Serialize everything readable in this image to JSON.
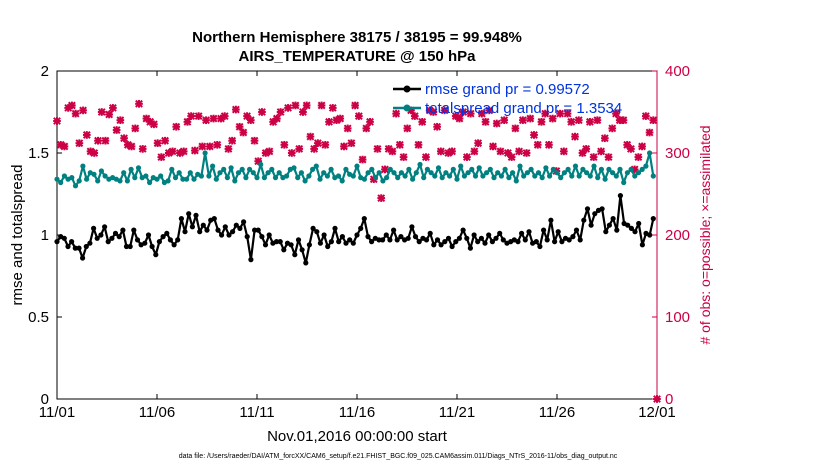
{
  "chart_data": {
    "type": "line",
    "title": "Northern Hemisphere 38175 / 38195 = 99.948%",
    "subtitle": "AIRS_TEMPERATURE @ 150 hPa",
    "xlabel": "Nov.01,2016 00:00:00 start",
    "ylabel_left": "rmse and totalspread",
    "ylabel_right": "# of obs: o=possible; ×=assimilated",
    "footnote": "data file: /Users/raeder/DAI/ATM_forcXX/CAM6_setup/f.e21.FHIST_BGC.f09_025.CAM6assim.011/Diags_NTrS_2016-11/obs_diag_output.nc",
    "xlim": [
      0,
      30
    ],
    "ylim_left": [
      0,
      2
    ],
    "ylim_right": [
      0,
      400
    ],
    "x_ticks": [
      0,
      5,
      10,
      15,
      20,
      25,
      30
    ],
    "x_tick_labels": [
      "11/01",
      "11/06",
      "11/11",
      "11/16",
      "11/21",
      "11/26",
      "12/01"
    ],
    "y_left_ticks": [
      0,
      0.5,
      1,
      1.5,
      2
    ],
    "y_left_tick_labels": [
      "0",
      "0.5",
      "1",
      "1.5",
      "2"
    ],
    "y_right_ticks": [
      0,
      100,
      200,
      300,
      400
    ],
    "y_right_tick_labels": [
      "0",
      "100",
      "200",
      "300",
      "400"
    ],
    "legend_position": "top-right",
    "colors": {
      "rmse": "#000000",
      "totalspread": "#008080",
      "obs": "#cc0044"
    },
    "series": [
      {
        "name": "rmse grand pr = 0.99572",
        "color": "#000000",
        "values": [
          0.96,
          0.99,
          0.98,
          0.93,
          0.96,
          0.92,
          0.92,
          0.86,
          0.93,
          0.95,
          1.04,
          0.98,
          1.0,
          1.05,
          0.96,
          0.98,
          1.01,
          0.99,
          1.03,
          0.93,
          0.93,
          1.03,
          0.97,
          0.94,
          0.95,
          1.0,
          0.93,
          0.88,
          0.96,
          0.99,
          1.01,
          0.97,
          0.94,
          0.97,
          1.1,
          1.02,
          1.13,
          1.05,
          1.12,
          1.02,
          1.06,
          1.03,
          1.09,
          1.1,
          1.03,
          1.0,
          1.05,
          1.0,
          1.02,
          1.06,
          1.04,
          1.08,
          0.99,
          0.85,
          1.03,
          1.03,
          0.99,
          0.94,
          1.0,
          0.95,
          0.96,
          0.96,
          0.91,
          0.95,
          0.94,
          0.88,
          0.97,
          0.91,
          0.83,
          0.94,
          1.04,
          1.02,
          0.95,
          1.0,
          0.93,
          0.96,
          1.04,
          0.96,
          0.99,
          0.95,
          0.97,
          0.95,
          1.0,
          1.04,
          1.1,
          0.99,
          0.96,
          0.98,
          0.97,
          0.97,
          1.0,
          0.97,
          1.03,
          0.97,
          0.99,
          0.97,
          0.98,
          1.05,
          0.99,
          0.96,
          0.98,
          0.97,
          1.01,
          0.94,
          0.97,
          0.94,
          0.96,
          0.98,
          0.93,
          0.96,
          0.98,
          1.03,
          0.98,
          0.92,
          1.0,
          0.96,
          0.98,
          0.95,
          1.0,
          0.96,
          0.98,
          1.01,
          0.97,
          0.95,
          0.96,
          0.97,
          0.96,
          1.01,
          0.97,
          1.02,
          0.95,
          0.96,
          0.93,
          1.03,
          0.97,
          1.09,
          0.96,
          1.02,
          0.96,
          0.98,
          0.97,
          0.99,
          1.03,
          0.97,
          1.09,
          1.16,
          1.06,
          1.13,
          1.15,
          1.16,
          1.02,
          1.06,
          1.1,
          1.03,
          1.24,
          1.07,
          1.06,
          1.04,
          1.02,
          1.07,
          0.94,
          1.01,
          1.0,
          1.1
        ]
      },
      {
        "name": "totalspread grand pr = 1.3534",
        "color": "#008080",
        "values": [
          1.34,
          1.32,
          1.36,
          1.34,
          1.35,
          1.3,
          1.33,
          1.42,
          1.34,
          1.38,
          1.37,
          1.33,
          1.39,
          1.36,
          1.34,
          1.35,
          1.34,
          1.33,
          1.38,
          1.33,
          1.4,
          1.35,
          1.41,
          1.35,
          1.36,
          1.32,
          1.35,
          1.34,
          1.36,
          1.32,
          1.33,
          1.4,
          1.35,
          1.38,
          1.34,
          1.34,
          1.38,
          1.34,
          1.37,
          1.36,
          1.5,
          1.36,
          1.42,
          1.34,
          1.38,
          1.4,
          1.35,
          1.41,
          1.33,
          1.38,
          1.4,
          1.35,
          1.4,
          1.38,
          1.35,
          1.43,
          1.35,
          1.38,
          1.4,
          1.35,
          1.38,
          1.35,
          1.36,
          1.4,
          1.41,
          1.35,
          1.38,
          1.33,
          1.36,
          1.4,
          1.42,
          1.34,
          1.38,
          1.36,
          1.4,
          1.35,
          1.36,
          1.33,
          1.4,
          1.37,
          1.36,
          1.42,
          1.35,
          1.34,
          1.38,
          1.4,
          1.35,
          1.38,
          1.33,
          1.35,
          1.4,
          1.38,
          1.35,
          1.38,
          1.36,
          1.4,
          1.34,
          1.38,
          1.43,
          1.35,
          1.4,
          1.38,
          1.36,
          1.41,
          1.35,
          1.38,
          1.36,
          1.4,
          1.34,
          1.42,
          1.36,
          1.38,
          1.4,
          1.36,
          1.41,
          1.36,
          1.38,
          1.4,
          1.35,
          1.38,
          1.36,
          1.4,
          1.35,
          1.38,
          1.33,
          1.42,
          1.36,
          1.38,
          1.4,
          1.36,
          1.38,
          1.35,
          1.41,
          1.36,
          1.4,
          1.38,
          1.35,
          1.38,
          1.4,
          1.36,
          1.42,
          1.36,
          1.4,
          1.38,
          1.36,
          1.42,
          1.35,
          1.4,
          1.34,
          1.4,
          1.38,
          1.36,
          1.4,
          1.32,
          1.38,
          1.4,
          1.36,
          1.38,
          1.4,
          1.42,
          1.5,
          1.36
        ]
      }
    ],
    "obs_counts": {
      "name": "# of obs",
      "color": "#cc0044",
      "values": [
        339,
        310,
        308,
        355,
        358,
        348,
        312,
        352,
        322,
        302,
        300,
        315,
        350,
        315,
        347,
        355,
        328,
        340,
        318,
        310,
        308,
        330,
        360,
        305,
        342,
        338,
        335,
        312,
        295,
        315,
        300,
        302,
        332,
        300,
        302,
        338,
        345,
        303,
        345,
        308,
        340,
        308,
        342,
        310,
        342,
        345,
        305,
        315,
        353,
        332,
        325,
        345,
        340,
        315,
        290,
        350,
        300,
        302,
        338,
        342,
        350,
        310,
        355,
        300,
        358,
        305,
        350,
        358,
        320,
        305,
        312,
        358,
        310,
        338,
        355,
        340,
        342,
        308,
        330,
        312,
        358,
        345,
        292,
        330,
        338,
        268,
        305,
        245,
        280,
        305,
        302,
        348,
        310,
        295,
        330,
        352,
        345,
        310,
        338,
        295,
        352,
        350,
        332,
        302,
        352,
        300,
        302,
        345,
        342,
        350,
        295,
        348,
        302,
        312,
        348,
        338,
        352,
        308,
        336,
        302,
        340,
        300,
        295,
        330,
        302,
        340,
        300,
        342,
        322,
        310,
        338,
        348,
        310,
        342,
        278,
        348,
        302,
        348,
        338,
        320,
        340,
        300,
        305,
        338,
        295,
        340,
        302,
        318,
        295,
        330,
        348,
        340,
        340,
        310,
        305,
        280,
        295,
        308,
        345,
        325,
        340,
        0
      ]
    }
  }
}
